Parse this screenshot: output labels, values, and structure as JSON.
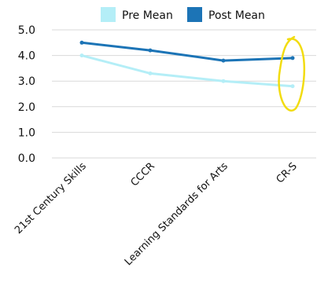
{
  "chart_data": {
    "type": "line",
    "title": "",
    "xlabel": "",
    "ylabel": "",
    "categories": [
      "21st Century Skills",
      "CCCR",
      "Learning Standards for Arts",
      "CR-S"
    ],
    "series": [
      {
        "name": "Pre Mean",
        "values": [
          4.0,
          3.3,
          3.0,
          2.8
        ],
        "color": "#b4eef7"
      },
      {
        "name": "Post Mean",
        "values": [
          4.5,
          4.2,
          3.8,
          3.9
        ],
        "color": "#1c74b6"
      }
    ],
    "ylim": [
      0,
      5
    ],
    "yticks": [
      "0.0",
      "1.0",
      "2.0",
      "3.0",
      "4.0",
      "5.0"
    ],
    "grid": true,
    "legend_position": "top",
    "annotation": {
      "type": "hand-drawn ellipse",
      "color": "#f2dc10",
      "target_category": "CR-S"
    }
  }
}
